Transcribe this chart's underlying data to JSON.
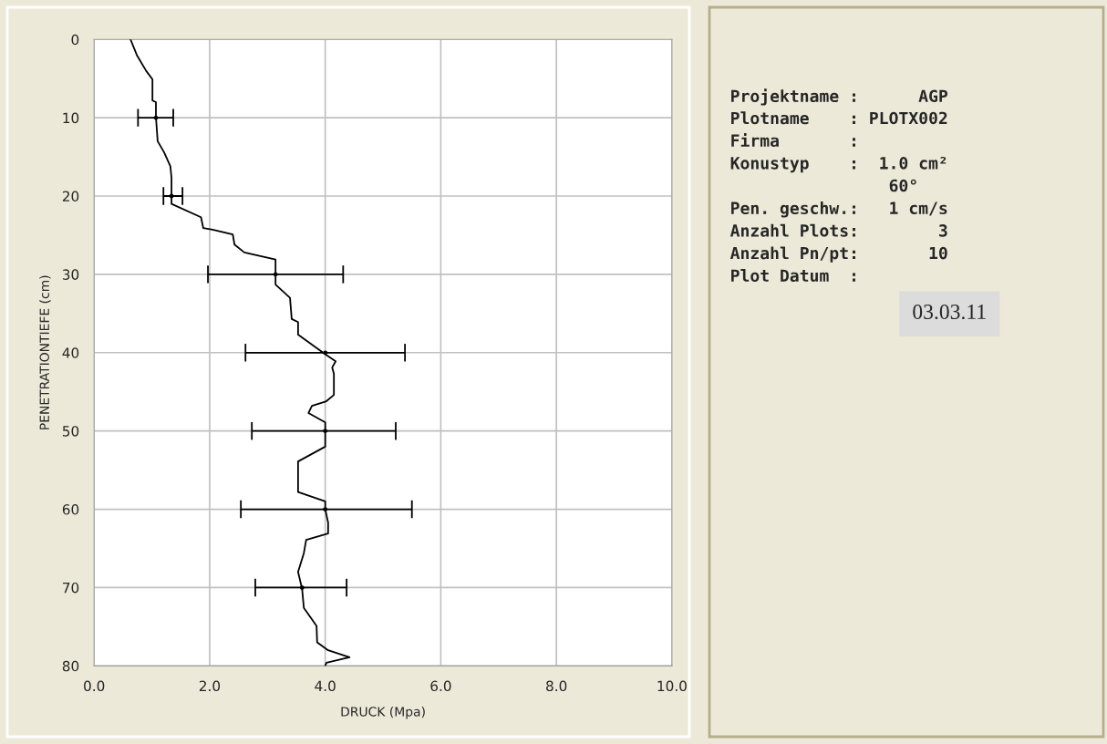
{
  "chart_data": [
    {
      "type": "line",
      "xlabel": "DRUCK (Mpa)",
      "ylabel": "PENETRATIONTIEFE (cm)",
      "xlim": [
        0,
        10
      ],
      "ylim": [
        80,
        0
      ],
      "xticks": [
        {
          "value": 0,
          "label": "0.0"
        },
        {
          "value": 2,
          "label": "2.0"
        },
        {
          "value": 4,
          "label": "4.0"
        },
        {
          "value": 6,
          "label": "6.0"
        },
        {
          "value": 8,
          "label": "8.0"
        },
        {
          "value": 10,
          "label": "10.0"
        }
      ],
      "yticks": [
        0,
        10,
        20,
        30,
        40,
        50,
        60,
        70,
        80
      ],
      "grid": true,
      "series": [
        {
          "type": "line",
          "color": "#000000",
          "marker": "none",
          "line_style": "solid",
          "x": [
            0.63,
            0.74,
            0.9,
            1.01,
            1.01,
            1.07,
            1.07,
            1.1,
            1.21,
            1.32,
            1.34,
            1.34,
            1.85,
            1.89,
            2.05,
            2.4,
            2.43,
            2.6,
            3.14,
            3.14,
            3.14,
            3.39,
            3.42,
            3.53,
            3.53,
            4.0,
            4.18,
            4.12,
            4.15,
            4.15,
            4.02,
            3.77,
            3.71,
            4.0,
            4.0,
            3.53,
            3.53,
            4.0,
            4.0,
            4.05,
            4.05,
            3.67,
            3.63,
            3.53,
            3.6,
            3.63,
            3.85,
            3.86,
            4.05,
            4.42,
            4.02,
            4.0
          ],
          "values": [
            0,
            2.0,
            4.0,
            5.1,
            7.8,
            8.0,
            9.9,
            13.0,
            14.4,
            16.2,
            17.7,
            21.0,
            22.7,
            24.1,
            24.3,
            24.9,
            26.2,
            27.2,
            28.1,
            30.0,
            31.3,
            33.0,
            35.7,
            36.1,
            37.7,
            40.2,
            41.1,
            41.9,
            42.7,
            45.4,
            46.2,
            46.8,
            47.7,
            48.9,
            52.0,
            53.9,
            57.8,
            59.0,
            60.0,
            61.7,
            63.1,
            63.9,
            65.6,
            68.0,
            70.2,
            72.6,
            74.9,
            77.0,
            78.0,
            78.9,
            79.6,
            80.0
          ]
        },
        {
          "type": "scatter",
          "color": "#000000",
          "marker": "none",
          "x": [
            1.07,
            1.34,
            3.14,
            4.0,
            4.0,
            4.0,
            3.6
          ],
          "values": [
            10,
            20,
            30,
            40,
            50,
            60,
            70
          ],
          "xerrors": [
            [
              0.76,
              1.37
            ],
            [
              1.2,
              1.53
            ],
            [
              1.97,
              4.31
            ],
            [
              2.62,
              5.38
            ],
            [
              2.73,
              5.22
            ],
            [
              2.54,
              5.5
            ],
            [
              2.79,
              4.37
            ]
          ]
        }
      ]
    },
    {
      "type": "other",
      "annotations": [
        "Projektname :      AGP",
        "Plotname    : PLOTX002",
        "Firma       :",
        "Konustyp    :  1.0 cm²",
        "                60°",
        "Pen. geschw.:   1 cm/s",
        "Anzahl Plots:        3",
        "Anzahl Pn/pt:       10",
        "Plot Datum  :",
        "03.03.11"
      ]
    }
  ]
}
